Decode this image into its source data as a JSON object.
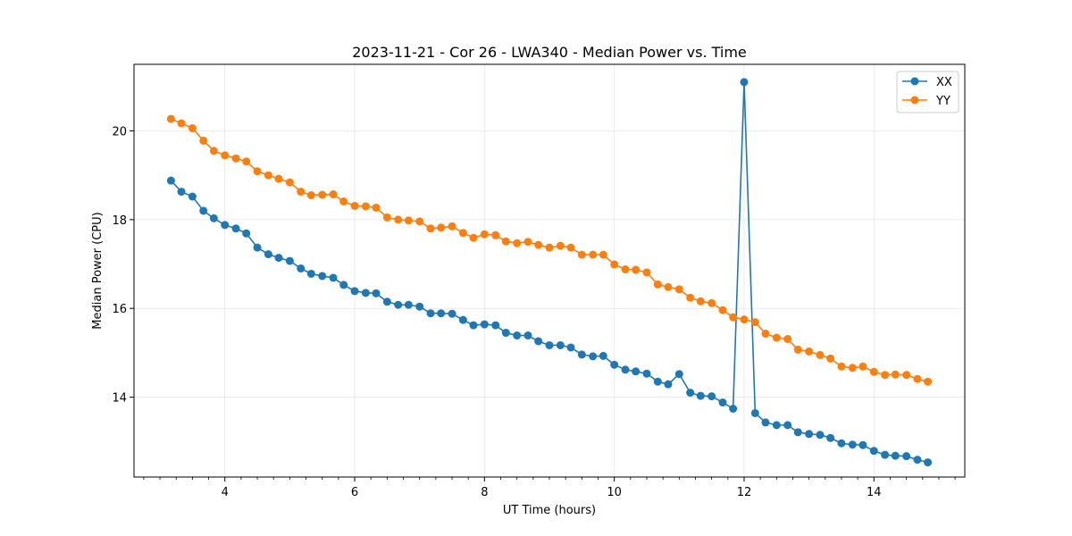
{
  "chart_data": {
    "type": "line",
    "title": "2023-11-21 - Cor 26 - LWA340 - Median Power vs. Time",
    "xlabel": "UT Time (hours)",
    "ylabel": "Median Power (CPU)",
    "xlim": [
      2.6,
      15.4
    ],
    "ylim": [
      12.2,
      21.5
    ],
    "xticks": [
      4,
      6,
      8,
      10,
      12,
      14
    ],
    "xtick_labels": [
      "4",
      "6",
      "8",
      "10",
      "12",
      "14"
    ],
    "yticks": [
      14,
      16,
      18,
      20
    ],
    "ytick_labels": [
      "14",
      "16",
      "18",
      "20"
    ],
    "grid": true,
    "legend_position": "top-right",
    "x": [
      3.17,
      3.33,
      3.5,
      3.67,
      3.83,
      4.0,
      4.17,
      4.33,
      4.5,
      4.67,
      4.83,
      5.0,
      5.17,
      5.33,
      5.5,
      5.67,
      5.83,
      6.0,
      6.17,
      6.33,
      6.5,
      6.67,
      6.83,
      7.0,
      7.17,
      7.33,
      7.5,
      7.67,
      7.83,
      8.0,
      8.17,
      8.33,
      8.5,
      8.67,
      8.83,
      9.0,
      9.17,
      9.33,
      9.5,
      9.67,
      9.83,
      10.0,
      10.17,
      10.33,
      10.5,
      10.67,
      10.83,
      11.0,
      11.17,
      11.33,
      11.5,
      11.67,
      11.83,
      12.0,
      12.17,
      12.33,
      12.5,
      12.67,
      12.83,
      13.0,
      13.17,
      13.33,
      13.5,
      13.67,
      13.83,
      14.0,
      14.17,
      14.33,
      14.5,
      14.67,
      14.83
    ],
    "series": [
      {
        "name": "XX",
        "color": "#1f77b4",
        "values": [
          18.88,
          18.63,
          18.52,
          18.2,
          18.03,
          17.88,
          17.8,
          17.69,
          17.37,
          17.22,
          17.14,
          17.07,
          16.9,
          16.78,
          16.73,
          16.69,
          16.53,
          16.39,
          16.35,
          16.34,
          16.15,
          16.08,
          16.08,
          16.04,
          15.89,
          15.89,
          15.88,
          15.74,
          15.62,
          15.64,
          15.62,
          15.45,
          15.39,
          15.39,
          15.26,
          15.17,
          15.17,
          15.12,
          14.96,
          14.92,
          14.93,
          14.73,
          14.62,
          14.58,
          14.53,
          14.35,
          14.29,
          14.52,
          14.1,
          14.03,
          14.02,
          13.88,
          13.74,
          21.1,
          13.64,
          13.43,
          13.37,
          13.37,
          13.21,
          13.17,
          13.15,
          13.08,
          12.96,
          12.93,
          12.92,
          12.79,
          12.7,
          12.68,
          12.67,
          12.59,
          12.53
        ]
      },
      {
        "name": "YY",
        "color": "#ff7f0e",
        "values": [
          20.27,
          20.17,
          20.06,
          19.78,
          19.55,
          19.45,
          19.38,
          19.31,
          19.09,
          19.0,
          18.92,
          18.84,
          18.63,
          18.55,
          18.56,
          18.57,
          18.41,
          18.31,
          18.3,
          18.27,
          18.05,
          18.0,
          17.98,
          17.96,
          17.8,
          17.82,
          17.85,
          17.7,
          17.59,
          17.67,
          17.65,
          17.51,
          17.47,
          17.5,
          17.43,
          17.37,
          17.41,
          17.37,
          17.21,
          17.21,
          17.21,
          16.99,
          16.88,
          16.87,
          16.81,
          16.54,
          16.48,
          16.43,
          16.24,
          16.16,
          16.12,
          15.96,
          15.8,
          15.75,
          15.69,
          15.43,
          15.34,
          15.31,
          15.07,
          15.03,
          14.95,
          14.87,
          14.69,
          14.66,
          14.69,
          14.57,
          14.5,
          14.51,
          14.5,
          14.41,
          14.35
        ]
      }
    ]
  }
}
